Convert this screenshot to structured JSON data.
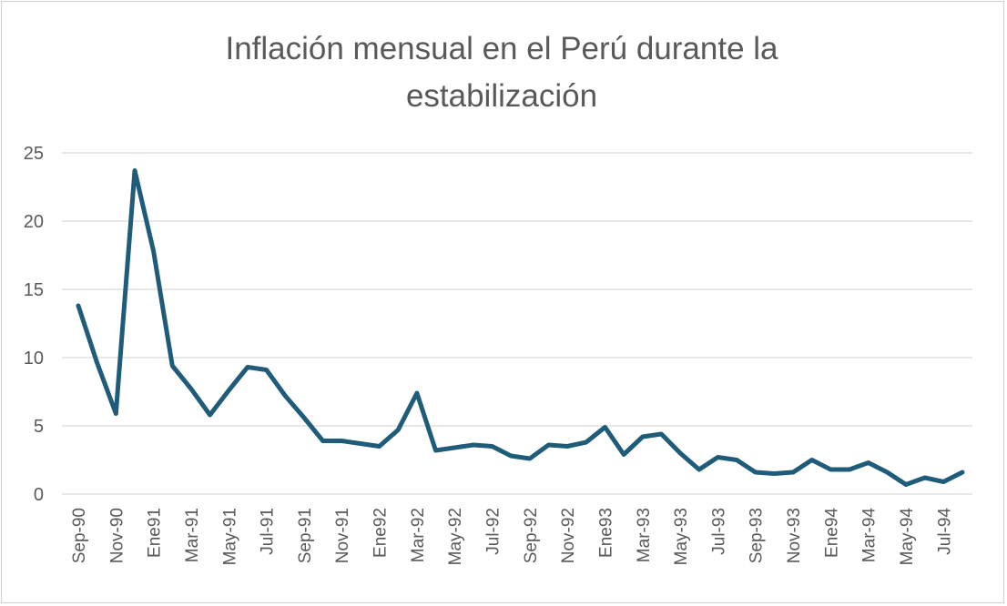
{
  "chart_data": {
    "type": "line",
    "title": "Inflación mensual en el Perú durante la estabilización",
    "title_lines": [
      "Inflación mensual en el Perú durante la",
      "estabilización"
    ],
    "xlabel": "",
    "ylabel": "",
    "ylim": [
      0,
      25
    ],
    "yticks": [
      0,
      5,
      10,
      15,
      20,
      25
    ],
    "grid": true,
    "legend": "none",
    "line_color": "#1f5c7a",
    "x": [
      "Sep-90",
      "Oct-90",
      "Nov-90",
      "Dic-90",
      "Ene91",
      "Feb-91",
      "Mar-91",
      "Abr-91",
      "May-91",
      "Jun-91",
      "Jul-91",
      "Ago-91",
      "Sep-91",
      "Oct-91",
      "Nov-91",
      "Dic-91",
      "Ene92",
      "Feb-92",
      "Mar-92",
      "Abr-92",
      "May-92",
      "Jun-92",
      "Jul-92",
      "Ago-92",
      "Sep-92",
      "Oct-92",
      "Nov-92",
      "Dic-92",
      "Ene93",
      "Feb-93",
      "Mar-93",
      "Abr-93",
      "May-93",
      "Jun-93",
      "Jul-93",
      "Ago-93",
      "Sep-93",
      "Oct-93",
      "Nov-93",
      "Dic-93",
      "Ene94",
      "Feb-94",
      "Mar-94",
      "Abr-94",
      "May-94",
      "Jun-94",
      "Jul-94",
      "Ago-94"
    ],
    "tick_labels": [
      "Sep-90",
      "Nov-90",
      "Ene91",
      "Mar-91",
      "May-91",
      "Jul-91",
      "Sep-91",
      "Nov-91",
      "Ene92",
      "Mar-92",
      "May-92",
      "Jul-92",
      "Sep-92",
      "Nov-92",
      "Ene93",
      "Mar-93",
      "May-93",
      "Jul-93",
      "Sep-93",
      "Nov-93",
      "Ene94",
      "Mar-94",
      "May-94",
      "Jul-94"
    ],
    "series": [
      {
        "values": [
          13.8,
          9.6,
          5.9,
          23.7,
          17.8,
          9.4,
          7.7,
          5.8,
          7.6,
          9.3,
          9.1,
          7.2,
          5.6,
          3.9,
          3.9,
          3.7,
          3.5,
          4.7,
          7.4,
          3.2,
          3.4,
          3.6,
          3.5,
          2.8,
          2.6,
          3.6,
          3.5,
          3.8,
          4.9,
          2.9,
          4.2,
          4.4,
          3.0,
          1.8,
          2.7,
          2.5,
          1.6,
          1.5,
          1.6,
          2.5,
          1.8,
          1.8,
          2.3,
          1.6,
          0.7,
          1.2,
          0.9,
          1.6
        ]
      }
    ]
  }
}
